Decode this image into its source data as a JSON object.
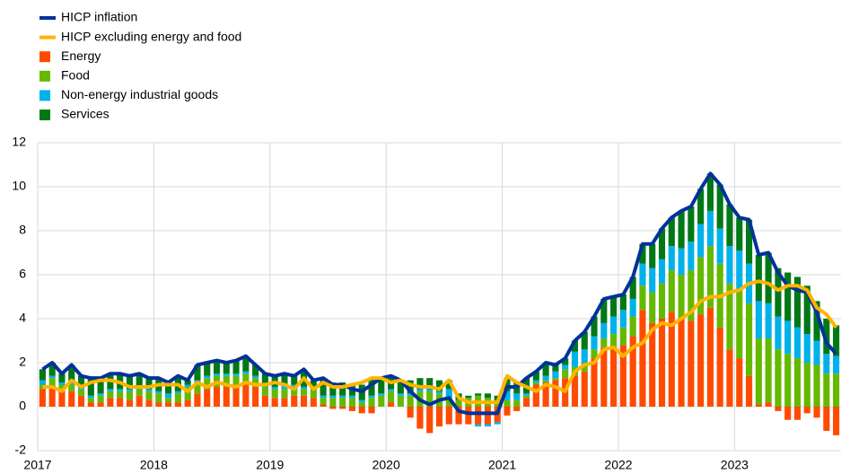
{
  "chart_data": {
    "type": "bar",
    "stacked": true,
    "grid": true,
    "legend": "top-left",
    "categories": [
      "2017",
      null,
      null,
      null,
      null,
      null,
      null,
      null,
      null,
      null,
      null,
      null,
      "2018",
      null,
      null,
      null,
      null,
      null,
      null,
      null,
      null,
      null,
      null,
      null,
      "2019",
      null,
      null,
      null,
      null,
      null,
      null,
      null,
      null,
      null,
      null,
      null,
      "2020",
      null,
      null,
      null,
      null,
      null,
      null,
      null,
      null,
      null,
      null,
      null,
      "2021",
      null,
      null,
      null,
      null,
      null,
      null,
      null,
      null,
      null,
      null,
      null,
      "2022",
      null,
      null,
      null,
      null,
      null,
      null,
      null,
      null,
      null,
      null,
      null,
      "2023",
      null,
      null,
      null,
      null,
      null,
      null,
      null,
      null,
      null,
      null
    ],
    "ylim": [
      -2,
      12
    ],
    "yticks": [
      -2,
      0,
      2,
      4,
      6,
      8,
      10,
      12
    ],
    "series": [
      {
        "name": "HICP inflation",
        "type": "line",
        "color": "#003299",
        "values": [
          1.7,
          2.0,
          1.5,
          1.9,
          1.4,
          1.3,
          1.3,
          1.5,
          1.5,
          1.4,
          1.5,
          1.3,
          1.3,
          1.1,
          1.4,
          1.2,
          1.9,
          2.0,
          2.1,
          2.0,
          2.1,
          2.3,
          1.9,
          1.5,
          1.4,
          1.5,
          1.4,
          1.7,
          1.2,
          1.3,
          1.0,
          1.0,
          0.8,
          0.7,
          1.0,
          1.3,
          1.4,
          1.2,
          0.7,
          0.3,
          0.1,
          0.3,
          0.4,
          -0.2,
          -0.3,
          -0.3,
          -0.3,
          -0.3,
          0.9,
          0.9,
          1.3,
          1.6,
          2.0,
          1.9,
          2.2,
          3.0,
          3.4,
          4.1,
          4.9,
          5.0,
          5.1,
          5.9,
          7.4,
          7.4,
          8.1,
          8.6,
          8.9,
          9.1,
          9.9,
          10.6,
          10.1,
          9.2,
          8.6,
          8.5,
          6.9,
          7.0,
          6.1,
          5.5,
          5.3,
          5.2,
          4.3,
          2.9,
          2.4
        ]
      },
      {
        "name": "HICP excluding energy and food",
        "type": "line",
        "color": "#ffb400",
        "values": [
          0.9,
          0.9,
          0.7,
          1.2,
          0.9,
          1.1,
          1.2,
          1.2,
          1.1,
          0.9,
          0.9,
          0.9,
          1.0,
          1.0,
          1.0,
          0.7,
          1.1,
          0.9,
          1.1,
          1.0,
          0.9,
          1.1,
          1.0,
          1.0,
          1.1,
          1.0,
          0.8,
          1.3,
          0.8,
          1.1,
          0.9,
          0.9,
          1.0,
          1.1,
          1.3,
          1.3,
          1.1,
          1.2,
          1.0,
          0.9,
          0.9,
          0.8,
          1.2,
          0.4,
          0.2,
          0.2,
          0.2,
          0.2,
          1.4,
          1.1,
          0.9,
          0.7,
          1.0,
          0.9,
          0.7,
          1.6,
          1.9,
          2.0,
          2.6,
          2.7,
          2.3,
          2.7,
          2.9,
          3.5,
          3.8,
          3.7,
          4.0,
          4.3,
          4.8,
          5.0,
          5.0,
          5.2,
          5.3,
          5.6,
          5.7,
          5.6,
          5.3,
          5.5,
          5.5,
          5.3,
          4.5,
          4.2,
          3.6
        ]
      },
      {
        "name": "Energy",
        "type": "bar",
        "color": "#ff4b00",
        "values": [
          0.8,
          0.9,
          0.7,
          0.7,
          0.5,
          0.2,
          0.2,
          0.4,
          0.4,
          0.3,
          0.5,
          0.3,
          0.2,
          0.2,
          0.2,
          0.3,
          0.6,
          0.8,
          0.9,
          0.9,
          0.9,
          1.0,
          0.9,
          0.5,
          0.4,
          0.4,
          0.5,
          0.5,
          0.4,
          0.1,
          -0.1,
          -0.1,
          -0.2,
          -0.3,
          -0.3,
          0,
          0.2,
          0,
          -0.5,
          -1.0,
          -1.2,
          -0.9,
          -0.8,
          -0.8,
          -0.8,
          -0.8,
          -0.8,
          -0.7,
          -0.4,
          -0.2,
          0.4,
          1.0,
          1.1,
          1.2,
          1.3,
          1.4,
          1.6,
          2.2,
          2.7,
          2.7,
          2.8,
          3.2,
          4.4,
          3.8,
          4.0,
          4.3,
          4.0,
          3.9,
          4.2,
          4.5,
          3.6,
          2.6,
          2.2,
          1.4,
          0.1,
          0.2,
          -0.2,
          -0.6,
          -0.6,
          -0.3,
          -0.5,
          -1.1,
          -1.3
        ]
      },
      {
        "name": "Food",
        "type": "bar",
        "color": "#65b800",
        "values": [
          0.2,
          0.4,
          0.3,
          0.3,
          0.3,
          0.2,
          0.3,
          0.3,
          0.3,
          0.4,
          0.3,
          0.4,
          0.4,
          0.2,
          0.4,
          0.6,
          0.5,
          0.5,
          0.5,
          0.5,
          0.5,
          0.5,
          0.4,
          0.4,
          0.4,
          0.4,
          0.4,
          0.3,
          0.4,
          0.3,
          0.4,
          0.4,
          0.4,
          0.2,
          0.4,
          0.5,
          0.5,
          0.5,
          0.5,
          0.7,
          0.7,
          0.6,
          0.4,
          0.3,
          0.4,
          0.5,
          0.4,
          0.3,
          0.3,
          0.3,
          0.1,
          0.1,
          0.1,
          0.1,
          0.4,
          0.4,
          0.4,
          0.4,
          0.4,
          0.6,
          0.8,
          0.9,
          1.1,
          1.4,
          1.6,
          1.9,
          2.0,
          2.3,
          2.6,
          2.8,
          2.9,
          3.0,
          3.1,
          3.3,
          3.0,
          2.9,
          2.6,
          2.4,
          2.2,
          2.0,
          1.9,
          1.5,
          1.5
        ]
      },
      {
        "name": "Non-energy industrial goods",
        "type": "bar",
        "color": "#00b1ea",
        "values": [
          0.2,
          0.1,
          0.1,
          0.1,
          0.1,
          0.1,
          0.1,
          0.1,
          0.1,
          0.1,
          0.1,
          0.1,
          0.1,
          0.2,
          0.1,
          0.1,
          0.1,
          0.1,
          0.1,
          0.1,
          0.1,
          0.1,
          0.1,
          0.1,
          0.1,
          0.2,
          0.1,
          0.1,
          0.1,
          0.1,
          0.1,
          0.1,
          0.1,
          0.1,
          0.1,
          0.1,
          0.1,
          0.1,
          0.1,
          0.1,
          0.1,
          0.1,
          0.4,
          0,
          0,
          -0.1,
          -0.1,
          -0.1,
          0.4,
          0.3,
          0.1,
          0.1,
          0.2,
          0.3,
          0.2,
          0.7,
          0.6,
          0.6,
          0.7,
          0.8,
          0.8,
          0.8,
          1.0,
          1.1,
          1.1,
          1.1,
          1.2,
          1.3,
          1.5,
          1.6,
          1.6,
          1.7,
          1.8,
          1.8,
          1.7,
          1.6,
          1.5,
          1.5,
          1.4,
          1.3,
          1.1,
          0.9,
          0.8
        ]
      },
      {
        "name": "Services",
        "type": "bar",
        "color": "#007816",
        "values": [
          0.5,
          0.6,
          0.4,
          0.8,
          0.5,
          0.8,
          0.7,
          0.7,
          0.7,
          0.6,
          0.6,
          0.5,
          0.6,
          0.5,
          0.7,
          0.2,
          0.7,
          0.6,
          0.6,
          0.5,
          0.6,
          0.7,
          0.5,
          0.5,
          0.5,
          0.5,
          0.4,
          0.8,
          0.3,
          0.8,
          0.6,
          0.6,
          0.5,
          0.7,
          0.8,
          0.7,
          0.6,
          0.6,
          0.6,
          0.5,
          0.5,
          0.5,
          0.4,
          0.3,
          0.1,
          0.1,
          0.2,
          0.2,
          0.6,
          0.5,
          0.7,
          0.4,
          0.6,
          0.3,
          0.3,
          0.5,
          0.8,
          0.9,
          1.1,
          0.9,
          0.7,
          1.0,
          0.9,
          1.1,
          1.4,
          1.3,
          1.7,
          1.6,
          1.6,
          1.7,
          2.0,
          1.9,
          1.5,
          2.0,
          2.1,
          2.3,
          2.2,
          2.2,
          2.3,
          2.2,
          1.8,
          1.6,
          1.4
        ]
      }
    ]
  }
}
